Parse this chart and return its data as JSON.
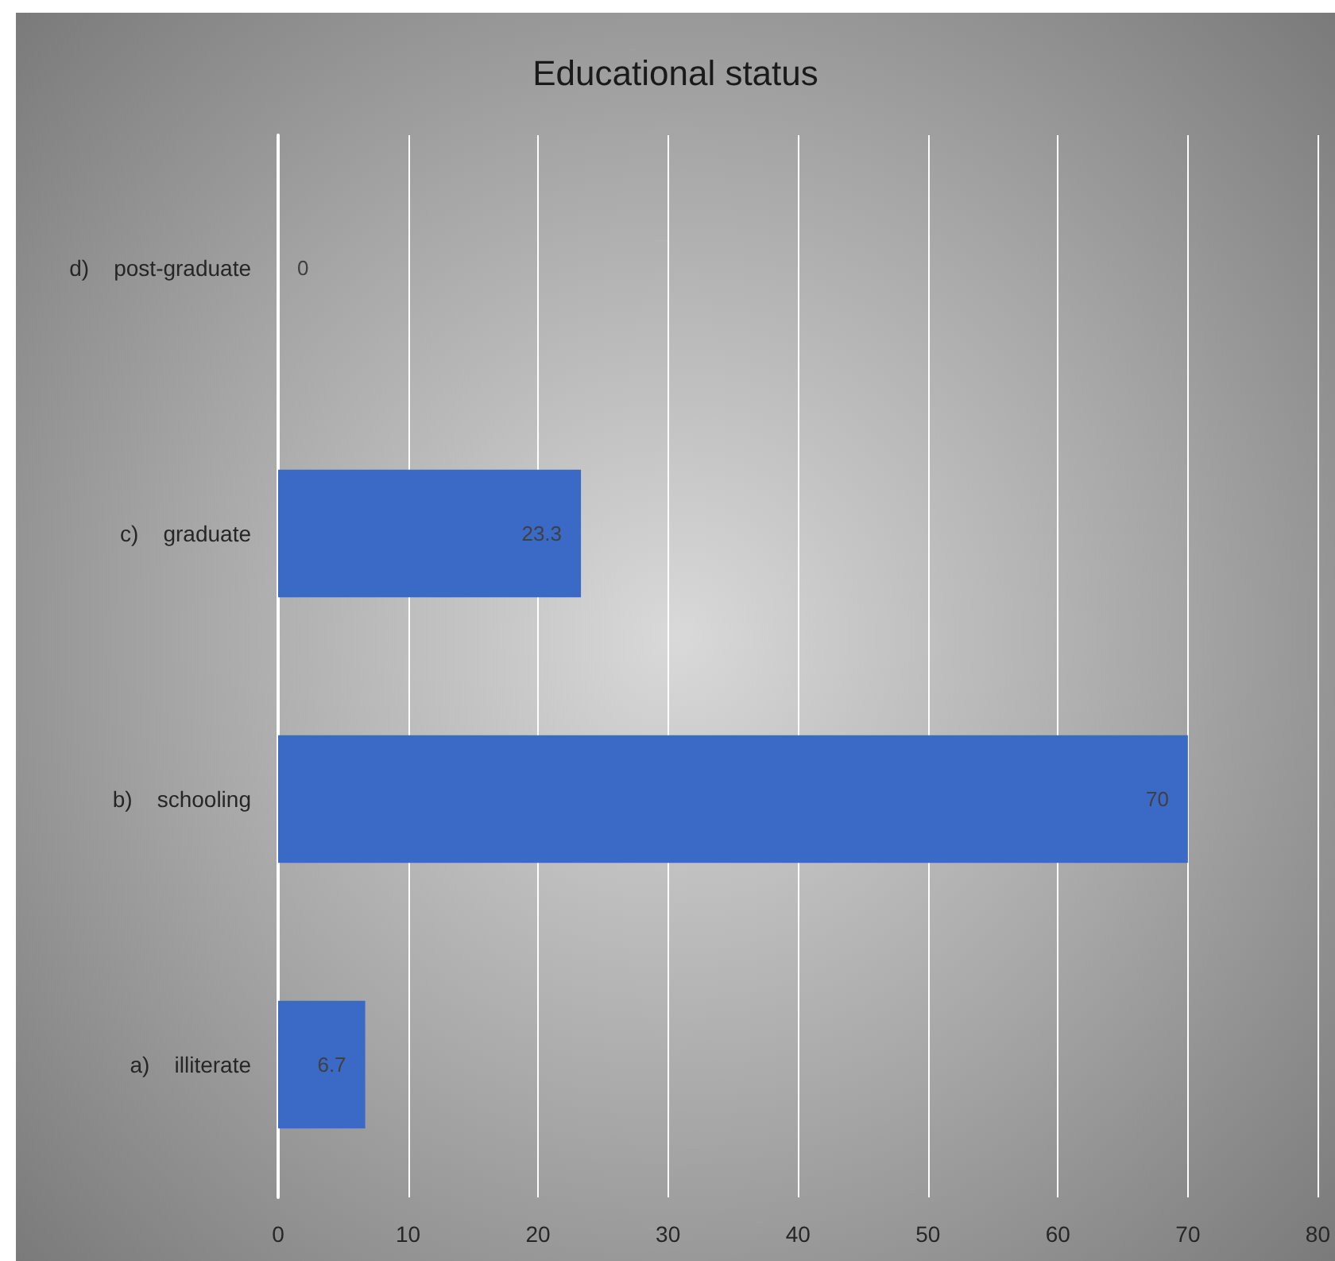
{
  "chart_data": {
    "type": "bar",
    "orientation": "horizontal",
    "title": "Educational status",
    "categories": [
      "d)    post-graduate",
      "c)    graduate",
      "b)    schooling",
      "a)    illiterate"
    ],
    "values": [
      0,
      23.3,
      70,
      6.7
    ],
    "color": "#3b69c6",
    "xlim": [
      0,
      80
    ],
    "xticks": [
      0,
      10,
      20,
      30,
      40,
      50,
      60,
      70,
      80
    ],
    "grid": "x",
    "data_labels": true
  }
}
